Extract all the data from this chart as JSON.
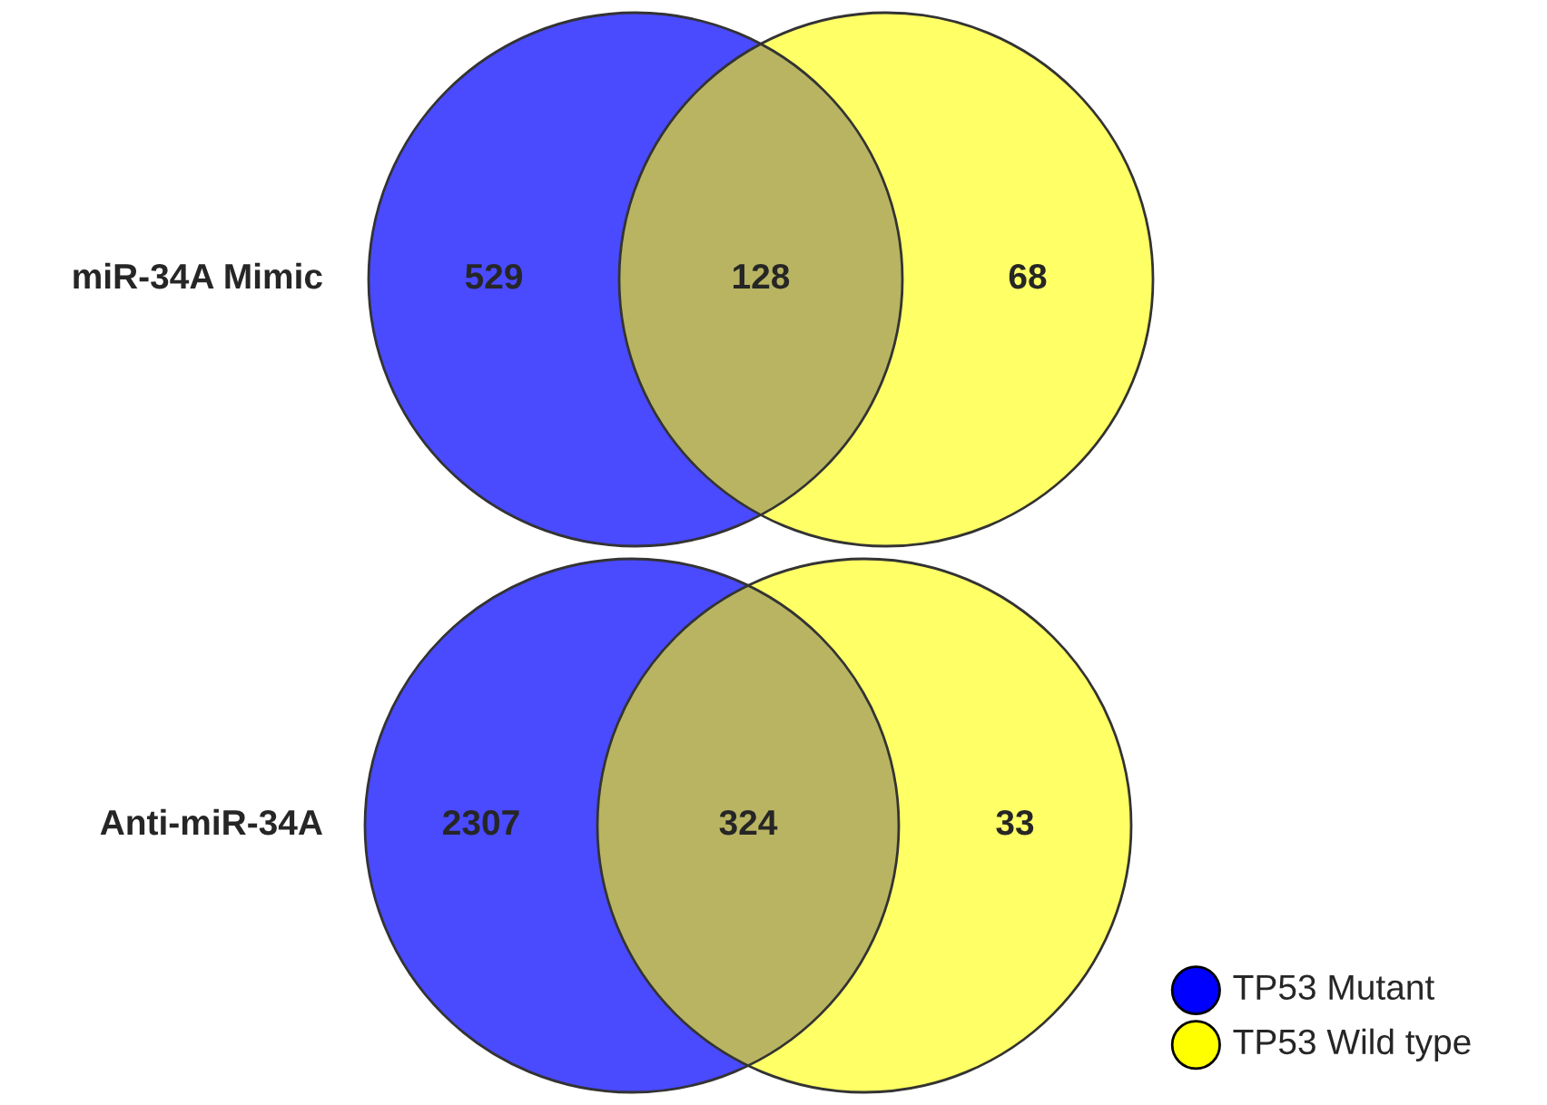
{
  "chart_data": [
    {
      "type": "other",
      "title": "miR-34A Mimic",
      "categories": [
        null,
        null,
        null
      ],
      "values": [
        529,
        128,
        68
      ],
      "data_labels": true,
      "colors": [
        "#4a4aff",
        "#b8b462",
        "#ffff66"
      ]
    },
    {
      "type": "other",
      "title": "Anti-miR-34A",
      "categories": [
        null,
        null,
        null
      ],
      "values": [
        2307,
        324,
        33
      ],
      "data_labels": true,
      "colors": [
        "#4a4aff",
        "#b8b462",
        "#ffff66"
      ]
    },
    {
      "type": "other",
      "categories": [
        "TP53 Mutant",
        "TP53 Wild type"
      ],
      "colors": [
        "#0000ff",
        "#ffff00"
      ]
    }
  ]
}
